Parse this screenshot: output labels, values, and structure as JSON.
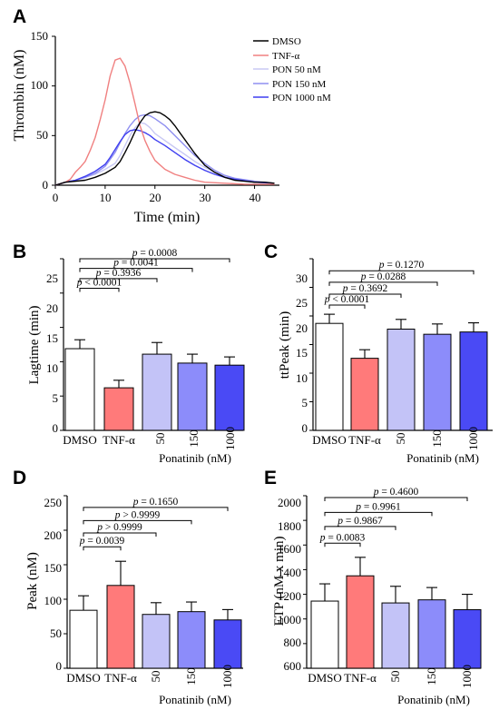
{
  "colors": {
    "dmso": "#000000",
    "tnf": "#f08080",
    "pon50": "#c8c8f4",
    "pon150": "#8f8ff0",
    "pon1000": "#3f3ff0",
    "bar_white": "#ffffff",
    "bar_tnf": "#ff7a7a",
    "bar_pon50": "#c3c3f7",
    "bar_pon150": "#8c8cfa",
    "bar_pon1000": "#4a4af5"
  },
  "panel_a": {
    "letter": "A",
    "ylabel": "Thrombin (nM)",
    "xlabel": "Time (min)",
    "yticks": [
      "0",
      "50",
      "100",
      "150"
    ],
    "xticks": [
      "0",
      "10",
      "20",
      "30",
      "40"
    ],
    "legend": [
      "DMSO",
      "TNF-α",
      "PON 50 nM",
      "PON 150 nM",
      "PON 1000 nM"
    ]
  },
  "panel_b": {
    "letter": "B",
    "ylabel": "Lagtime (min)",
    "yticks": [
      "0",
      "5",
      "10",
      "15",
      "20",
      "25"
    ],
    "xticks": [
      "DMSO",
      "TNF-α",
      "50",
      "150",
      "1000"
    ],
    "group_label": "Ponatinib (nM)",
    "pvalues": [
      "p < 0.0001",
      "p = 0.3936",
      "p = 0.0041",
      "p = 0.0008"
    ]
  },
  "panel_c": {
    "letter": "C",
    "ylabel": "ttPeak (min)",
    "yticks": [
      "0",
      "5",
      "10",
      "15",
      "20",
      "25",
      "30"
    ],
    "xticks": [
      "DMSO",
      "TNF-α",
      "50",
      "150",
      "1000"
    ],
    "group_label": "Ponatinib (nM)",
    "pvalues": [
      "p < 0.0001",
      "p = 0.3692",
      "p = 0.0288",
      "p = 0.1270"
    ]
  },
  "panel_d": {
    "letter": "D",
    "ylabel": "Peak (nM)",
    "yticks": [
      "0",
      "50",
      "100",
      "150",
      "200",
      "250"
    ],
    "xticks": [
      "DMSO",
      "TNF-α",
      "50",
      "150",
      "1000"
    ],
    "group_label": "Ponatinib (nM)",
    "pvalues": [
      "p = 0.0039",
      "p > 0.9999",
      "p > 0.9999",
      "p = 0.1650"
    ]
  },
  "panel_e": {
    "letter": "E",
    "ylabel": "ETP (nM x min)",
    "yticks": [
      "600",
      "800",
      "1000",
      "1200",
      "1400",
      "1600",
      "1800",
      "2000"
    ],
    "xticks": [
      "DMSO",
      "TNF-α",
      "50",
      "150",
      "1000"
    ],
    "group_label": "Ponatinib (nM)",
    "pvalues": [
      "p = 0.0083",
      "p = 0.9867",
      "p = 0.9961",
      "p = 0.4600"
    ]
  },
  "chart_data": [
    {
      "type": "line",
      "panel": "A",
      "xlabel": "Time (min)",
      "ylabel": "Thrombin (nM)",
      "xlim": [
        0,
        45
      ],
      "ylim": [
        0,
        150
      ],
      "series": [
        {
          "name": "DMSO",
          "x": [
            0,
            2,
            6,
            8,
            10,
            12,
            13,
            14,
            15,
            16,
            17,
            18,
            19,
            20,
            21,
            22,
            23,
            24,
            25,
            26,
            27,
            28,
            29,
            30,
            32,
            34,
            36,
            38,
            40,
            42,
            44
          ],
          "values": [
            0,
            3,
            5,
            8,
            12,
            18,
            24,
            33,
            43,
            54,
            63,
            70,
            73,
            74,
            73,
            70,
            66,
            60,
            53,
            46,
            39,
            32,
            26,
            20,
            13,
            8,
            5,
            4,
            3,
            3,
            2
          ]
        },
        {
          "name": "TNF-α",
          "x": [
            0,
            2,
            3,
            4,
            5,
            6,
            7,
            8,
            9,
            10,
            11,
            12,
            13,
            14,
            15,
            16,
            17,
            18,
            19,
            20,
            22,
            24,
            26,
            28,
            30,
            34,
            38,
            44
          ],
          "values": [
            0,
            3,
            6,
            13,
            18,
            24,
            35,
            48,
            66,
            86,
            110,
            126,
            128,
            120,
            103,
            82,
            60,
            45,
            34,
            25,
            16,
            11,
            8,
            5,
            3,
            2,
            1,
            1
          ]
        },
        {
          "name": "PON 50 nM",
          "x": [
            0,
            2,
            4,
            6,
            8,
            10,
            12,
            13,
            14,
            15,
            16,
            17,
            18,
            19,
            20,
            22,
            24,
            26,
            28,
            30,
            32,
            34,
            36,
            40,
            44
          ],
          "values": [
            0,
            3,
            5,
            8,
            11,
            16,
            22,
            30,
            40,
            50,
            58,
            63,
            62,
            58,
            52,
            45,
            38,
            31,
            24,
            18,
            13,
            9,
            6,
            3,
            2
          ]
        },
        {
          "name": "PON 150 nM",
          "x": [
            0,
            2,
            4,
            6,
            8,
            10,
            11,
            12,
            13,
            14,
            15,
            16,
            17,
            18,
            19,
            20,
            22,
            24,
            26,
            28,
            30,
            32,
            34,
            36,
            40,
            44
          ],
          "values": [
            0,
            3,
            5,
            8,
            12,
            19,
            26,
            33,
            43,
            52,
            60,
            66,
            70,
            71,
            70,
            67,
            60,
            50,
            40,
            30,
            22,
            15,
            10,
            7,
            4,
            2
          ]
        },
        {
          "name": "PON 1000 nM",
          "x": [
            0,
            2,
            4,
            6,
            8,
            10,
            11,
            12,
            13,
            14,
            15,
            16,
            17,
            18,
            19,
            20,
            22,
            24,
            26,
            28,
            30,
            32,
            34,
            36,
            40,
            44
          ],
          "values": [
            0,
            3,
            5,
            9,
            14,
            21,
            28,
            36,
            44,
            51,
            55,
            56,
            55,
            53,
            50,
            46,
            40,
            33,
            26,
            20,
            15,
            11,
            8,
            6,
            3,
            2
          ]
        }
      ]
    },
    {
      "type": "bar",
      "panel": "B",
      "ylabel": "Lagtime (min)",
      "xlabel": "Ponatinib (nM)",
      "ylim": [
        0,
        25
      ],
      "categories": [
        "DMSO",
        "TNF-α",
        "50",
        "150",
        "1000"
      ],
      "values": [
        11.9,
        6.2,
        11.1,
        9.8,
        9.5
      ],
      "errors": [
        1.3,
        1.1,
        1.7,
        1.3,
        1.2
      ],
      "comparisons": [
        {
          "from": "DMSO",
          "to": "TNF-α",
          "label": "p < 0.0001",
          "y": 20.7
        },
        {
          "from": "DMSO",
          "to": "50",
          "label": "p = 0.3936",
          "y": 22.1
        },
        {
          "from": "DMSO",
          "to": "150",
          "label": "p = 0.0041",
          "y": 23.6
        },
        {
          "from": "DMSO",
          "to": "1000",
          "label": "p = 0.0008",
          "y": 25.0
        }
      ]
    },
    {
      "type": "bar",
      "panel": "C",
      "ylabel": "ttPeak (min)",
      "xlabel": "Ponatinib (nM)",
      "ylim": [
        0,
        30
      ],
      "categories": [
        "DMSO",
        "TNF-α",
        "50",
        "150",
        "1000"
      ],
      "values": [
        18.7,
        12.6,
        17.7,
        16.8,
        17.2
      ],
      "errors": [
        1.6,
        1.5,
        1.7,
        1.8,
        1.6
      ],
      "comparisons": [
        {
          "from": "DMSO",
          "to": "TNF-α",
          "label": "p < 0.0001",
          "y": 21.9
        },
        {
          "from": "DMSO",
          "to": "50",
          "label": "p = 0.3692",
          "y": 23.8
        },
        {
          "from": "DMSO",
          "to": "150",
          "label": "p = 0.0288",
          "y": 25.9
        },
        {
          "from": "DMSO",
          "to": "1000",
          "label": "p = 0.1270",
          "y": 27.9
        }
      ]
    },
    {
      "type": "bar",
      "panel": "D",
      "ylabel": "Peak (nM)",
      "xlabel": "Ponatinib (nM)",
      "ylim": [
        0,
        250
      ],
      "categories": [
        "DMSO",
        "TNF-α",
        "50",
        "150",
        "1000"
      ],
      "values": [
        84,
        120,
        78,
        82,
        70
      ],
      "errors": [
        21,
        35,
        17,
        14,
        15
      ],
      "comparisons": [
        {
          "from": "DMSO",
          "to": "TNF-α",
          "label": "p = 0.0039",
          "y": 176
        },
        {
          "from": "DMSO",
          "to": "50",
          "label": "p > 0.9999",
          "y": 196
        },
        {
          "from": "DMSO",
          "to": "150",
          "label": "p > 0.9999",
          "y": 214
        },
        {
          "from": "DMSO",
          "to": "1000",
          "label": "p = 0.1650",
          "y": 233
        }
      ]
    },
    {
      "type": "bar",
      "panel": "E",
      "ylabel": "ETP (nM x min)",
      "xlabel": "Ponatinib (nM)",
      "ylim": [
        600,
        2000
      ],
      "categories": [
        "DMSO",
        "TNF-α",
        "50",
        "150",
        "1000"
      ],
      "values": [
        1145,
        1350,
        1130,
        1155,
        1075
      ],
      "errors": [
        140,
        150,
        135,
        100,
        125
      ],
      "comparisons": [
        {
          "from": "DMSO",
          "to": "TNF-α",
          "label": "p = 0.0083",
          "y": 1615
        },
        {
          "from": "DMSO",
          "to": "50",
          "label": "p = 0.9867",
          "y": 1750
        },
        {
          "from": "DMSO",
          "to": "150",
          "label": "p = 0.9961",
          "y": 1865
        },
        {
          "from": "DMSO",
          "to": "1000",
          "label": "p = 0.4600",
          "y": 1985
        }
      ]
    }
  ]
}
